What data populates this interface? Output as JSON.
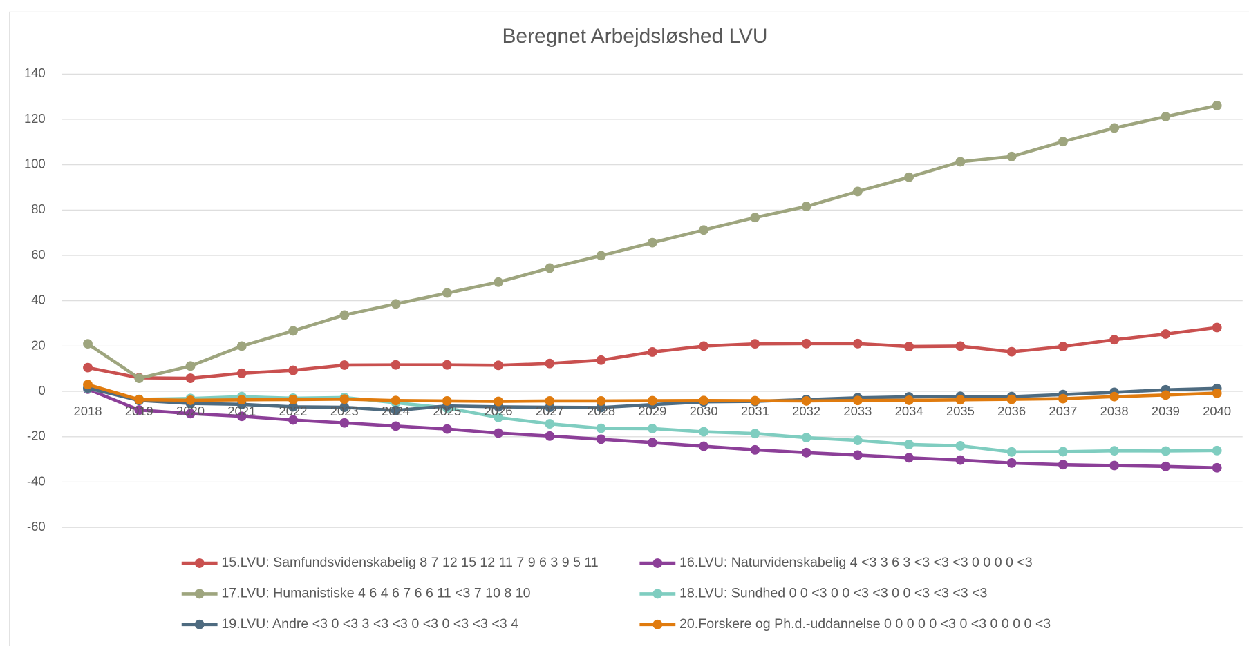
{
  "chart_data": {
    "type": "line",
    "title": "Beregnet Arbejdsløshed LVU",
    "categories": [
      "2018",
      "2019",
      "2020",
      "2021",
      "2022",
      "2023",
      "2024",
      "2025",
      "2026",
      "2027",
      "2028",
      "2029",
      "2030",
      "2031",
      "2032",
      "2033",
      "2034",
      "2035",
      "2036",
      "2037",
      "2038",
      "2039",
      "2040"
    ],
    "ylim": [
      -60,
      140
    ],
    "yticks": [
      -60,
      -40,
      -20,
      0,
      20,
      40,
      60,
      80,
      100,
      120,
      140
    ],
    "grid": true,
    "legend": "bottom",
    "series": [
      {
        "name": "15.LVU: Samfundsvidenskabelig 8 7 12 15 12 11 7 9 6 3 9 5 11",
        "color": "#c9504f",
        "values": [
          10.5,
          6,
          5.8,
          8,
          9.3,
          11.6,
          11.7,
          11.7,
          11.5,
          12.3,
          13.8,
          17.4,
          20,
          21,
          21.1,
          21.1,
          19.8,
          20,
          17.5,
          19.8,
          22.8,
          25.3,
          28.2
        ]
      },
      {
        "name": "16.LVU: Naturvidenskabelig 4 <3 3 6 3 <3 <3 <3 0 0 0 0 <3",
        "color": "#8c3f98",
        "values": [
          1,
          -8.2,
          -9.8,
          -11,
          -12.6,
          -13.9,
          -15.3,
          -16.6,
          -18.4,
          -19.7,
          -21.1,
          -22.6,
          -24.2,
          -25.8,
          -27,
          -28.1,
          -29.3,
          -30.3,
          -31.6,
          -32.3,
          -32.7,
          -33.1,
          -33.7
        ]
      },
      {
        "name": "17.LVU: Humanistiske 4 6 4 6 7 6 6 11 <3 7 10 8 10",
        "color": "#9ea57e",
        "values": [
          21,
          5.8,
          11.2,
          20,
          26.7,
          33.7,
          38.6,
          43.4,
          48.2,
          54.4,
          59.9,
          65.6,
          71.2,
          76.7,
          81.6,
          88.2,
          94.5,
          101.3,
          103.6,
          110.2,
          116.2,
          121.2,
          126.1
        ]
      },
      {
        "name": "18.LVU: Sundhed 0 0 <3 0 0 <3 <3 0 0 <3 <3 <3 <3",
        "color": "#7fcdc0",
        "values": [
          1.3,
          -3.5,
          -3.1,
          -2.3,
          -3,
          -2.7,
          -5,
          -7.3,
          -11.5,
          -14.3,
          -16.3,
          -16.4,
          -17.8,
          -18.6,
          -20.4,
          -21.6,
          -23.4,
          -24,
          -26.7,
          -26.6,
          -26.2,
          -26.3,
          -26.1
        ]
      },
      {
        "name": "19.LVU: Andre <3 0 <3 3 <3 <3 0 <3 0 <3 <3 <3 4",
        "color": "#4e6b80",
        "values": [
          1.5,
          -4,
          -5.3,
          -5.7,
          -6.8,
          -7,
          -8.4,
          -6.4,
          -6.8,
          -7,
          -7.1,
          -5.8,
          -4.6,
          -4.4,
          -3.6,
          -2.8,
          -2.4,
          -2.2,
          -2.3,
          -1.4,
          -0.4,
          0.7,
          1.3
        ]
      },
      {
        "name": "20.Forskere og Ph.d.-uddannelse 0 0 0 0 0 <3 0 <3 0 0 0 0 <3",
        "color": "#e07b0e",
        "values": [
          3,
          -3.6,
          -3.9,
          -3.7,
          -3.6,
          -3.4,
          -4,
          -4.2,
          -4.4,
          -4.2,
          -4.2,
          -4.1,
          -4,
          -4.1,
          -4.2,
          -4,
          -3.9,
          -3.7,
          -3.5,
          -3.2,
          -2.3,
          -1.6,
          -0.8
        ]
      }
    ]
  }
}
